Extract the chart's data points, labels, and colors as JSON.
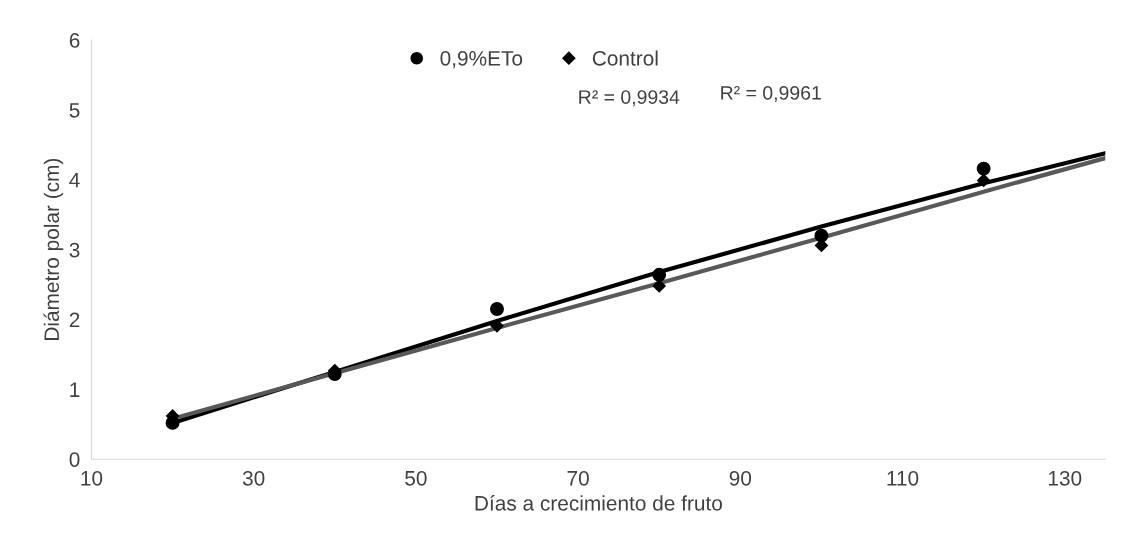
{
  "chart_data": {
    "type": "scatter",
    "xlabel": "Días a crecimiento de fruto",
    "ylabel": "Diámetro polar (cm)",
    "x": [
      20,
      40,
      60,
      80,
      100,
      120
    ],
    "series": [
      {
        "name": "0,9%ETo",
        "color": "#000000",
        "marker": "circle",
        "values": [
          0.52,
          1.22,
          2.15,
          2.64,
          3.2,
          4.16
        ]
      },
      {
        "name": "Control",
        "color": "#000000",
        "marker": "diamond",
        "values": [
          0.62,
          1.27,
          1.91,
          2.48,
          3.06,
          3.99
        ]
      },
      {
        "type": "line",
        "color": "#000000",
        "x": [
          20,
          40,
          60,
          80,
          100,
          120,
          135
        ],
        "values": [
          0.52,
          1.25,
          1.98,
          2.68,
          3.33,
          3.95,
          4.38
        ]
      },
      {
        "type": "line",
        "color": "#595959",
        "x": [
          20,
          40,
          60,
          80,
          100,
          120,
          135
        ],
        "values": [
          0.58,
          1.23,
          1.88,
          2.52,
          3.17,
          3.83,
          4.31
        ]
      }
    ],
    "annotations": [
      "R² = 0,9934",
      "R² = 0,9961"
    ],
    "xlim": [
      10,
      135
    ],
    "xticks": [
      10,
      30,
      50,
      70,
      90,
      110,
      130
    ],
    "ylim": [
      0,
      6
    ],
    "yticks": [
      0,
      1,
      2,
      3,
      4,
      5,
      6
    ],
    "grid": false,
    "legend": "top"
  }
}
